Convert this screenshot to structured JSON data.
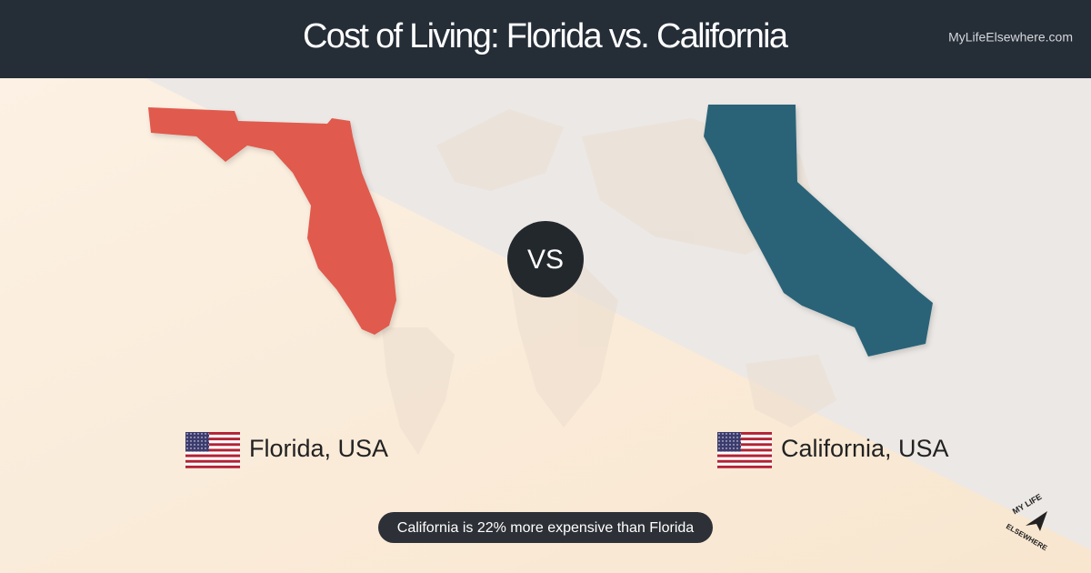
{
  "header": {
    "title": "Cost of Living: Florida vs. California",
    "site": "MyLifeElsewhere.com"
  },
  "left": {
    "label": "Florida, USA"
  },
  "vs": "VS",
  "right": {
    "label": "California, USA"
  },
  "footer": {
    "note": "California is 22% more expensive than Florida"
  },
  "logo": {
    "top": "MY LIFE",
    "bottom": "ELSEWHERE"
  }
}
